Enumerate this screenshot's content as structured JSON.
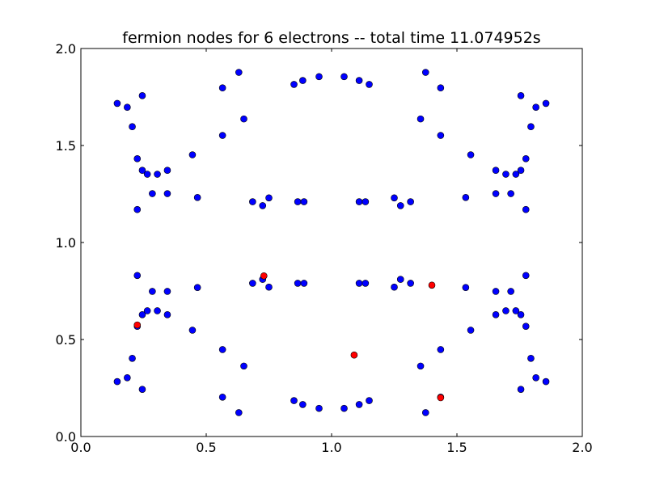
{
  "chart_data": {
    "type": "scatter",
    "title": "fermion nodes for 6 electrons -- total time 11.074952s",
    "xlabel": "",
    "ylabel": "",
    "xlim": [
      0.0,
      2.0
    ],
    "ylim": [
      0.0,
      2.0
    ],
    "xticks": [
      "0.0",
      "0.5",
      "1.0",
      "1.5",
      "2.0"
    ],
    "yticks": [
      "0.0",
      "0.5",
      "1.0",
      "1.5",
      "2.0"
    ],
    "grid": false,
    "series": [
      {
        "color": "#0000ff",
        "points": [
          [
            0.145,
            1.717
          ],
          [
            0.185,
            1.697
          ],
          [
            0.205,
            1.597
          ],
          [
            0.225,
            1.432
          ],
          [
            0.245,
            1.757
          ],
          [
            0.245,
            1.372
          ],
          [
            0.265,
            1.352
          ],
          [
            0.305,
            1.352
          ],
          [
            0.345,
            1.372
          ],
          [
            0.285,
            1.252
          ],
          [
            0.345,
            1.252
          ],
          [
            0.225,
            1.17
          ],
          [
            0.445,
            1.452
          ],
          [
            0.465,
            1.232
          ],
          [
            0.565,
            1.797
          ],
          [
            0.565,
            1.552
          ],
          [
            0.63,
            1.877
          ],
          [
            0.65,
            1.637
          ],
          [
            0.685,
            1.21
          ],
          [
            0.725,
            1.19
          ],
          [
            0.75,
            1.23
          ],
          [
            0.865,
            1.21
          ],
          [
            0.89,
            1.21
          ],
          [
            0.85,
            1.815
          ],
          [
            0.885,
            1.835
          ],
          [
            0.95,
            1.855
          ],
          [
            1.05,
            1.855
          ],
          [
            1.11,
            1.835
          ],
          [
            1.15,
            1.815
          ],
          [
            1.11,
            1.21
          ],
          [
            1.135,
            1.21
          ],
          [
            1.25,
            1.23
          ],
          [
            1.275,
            1.19
          ],
          [
            1.315,
            1.21
          ],
          [
            1.355,
            1.637
          ],
          [
            1.375,
            1.877
          ],
          [
            1.435,
            1.797
          ],
          [
            1.435,
            1.552
          ],
          [
            1.535,
            1.232
          ],
          [
            1.555,
            1.452
          ],
          [
            1.655,
            1.372
          ],
          [
            1.695,
            1.352
          ],
          [
            1.735,
            1.352
          ],
          [
            1.755,
            1.372
          ],
          [
            1.655,
            1.252
          ],
          [
            1.715,
            1.252
          ],
          [
            1.755,
            1.757
          ],
          [
            1.775,
            1.432
          ],
          [
            1.795,
            1.597
          ],
          [
            1.815,
            1.697
          ],
          [
            1.855,
            1.717
          ],
          [
            1.775,
            1.17
          ],
          [
            0.145,
            0.283
          ],
          [
            0.185,
            0.303
          ],
          [
            0.205,
            0.403
          ],
          [
            0.225,
            0.568
          ],
          [
            0.245,
            0.243
          ],
          [
            0.245,
            0.628
          ],
          [
            0.265,
            0.648
          ],
          [
            0.305,
            0.648
          ],
          [
            0.345,
            0.628
          ],
          [
            0.285,
            0.748
          ],
          [
            0.345,
            0.748
          ],
          [
            0.225,
            0.83
          ],
          [
            0.445,
            0.548
          ],
          [
            0.465,
            0.768
          ],
          [
            0.565,
            0.203
          ],
          [
            0.565,
            0.448
          ],
          [
            0.63,
            0.123
          ],
          [
            0.65,
            0.363
          ],
          [
            0.685,
            0.79
          ],
          [
            0.725,
            0.81
          ],
          [
            0.75,
            0.77
          ],
          [
            0.865,
            0.79
          ],
          [
            0.89,
            0.79
          ],
          [
            0.85,
            0.185
          ],
          [
            0.885,
            0.165
          ],
          [
            0.95,
            0.145
          ],
          [
            1.05,
            0.145
          ],
          [
            1.11,
            0.165
          ],
          [
            1.15,
            0.185
          ],
          [
            1.11,
            0.79
          ],
          [
            1.135,
            0.79
          ],
          [
            1.25,
            0.77
          ],
          [
            1.275,
            0.81
          ],
          [
            1.315,
            0.79
          ],
          [
            1.355,
            0.363
          ],
          [
            1.375,
            0.123
          ],
          [
            1.435,
            0.203
          ],
          [
            1.435,
            0.448
          ],
          [
            1.535,
            0.768
          ],
          [
            1.555,
            0.548
          ],
          [
            1.655,
            0.628
          ],
          [
            1.695,
            0.648
          ],
          [
            1.735,
            0.648
          ],
          [
            1.755,
            0.628
          ],
          [
            1.655,
            0.748
          ],
          [
            1.715,
            0.748
          ],
          [
            1.755,
            0.243
          ],
          [
            1.775,
            0.568
          ],
          [
            1.795,
            0.403
          ],
          [
            1.815,
            0.303
          ],
          [
            1.855,
            0.283
          ],
          [
            1.775,
            0.83
          ]
        ]
      },
      {
        "color": "#ff0000",
        "points": [
          [
            0.225,
            0.575
          ],
          [
            0.73,
            0.828
          ],
          [
            1.09,
            0.42
          ],
          [
            1.4,
            0.78
          ],
          [
            1.435,
            0.2
          ]
        ]
      }
    ]
  }
}
